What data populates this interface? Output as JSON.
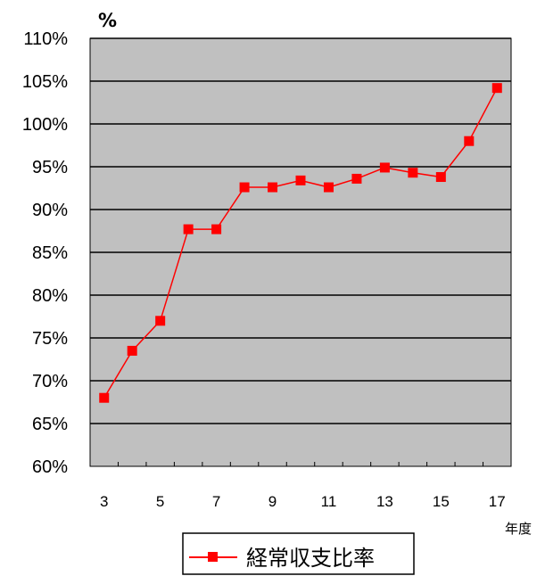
{
  "chart_data": {
    "type": "line",
    "ylabel": "%",
    "xlabel": "年度",
    "ylim": [
      60,
      110
    ],
    "yticks": [
      "60%",
      "65%",
      "70%",
      "75%",
      "80%",
      "85%",
      "90%",
      "95%",
      "100%",
      "105%",
      "110%"
    ],
    "xtick_labels": [
      "3",
      "5",
      "7",
      "9",
      "11",
      "13",
      "15",
      "17"
    ],
    "x": [
      3,
      4,
      5,
      6,
      7,
      8,
      9,
      10,
      11,
      12,
      13,
      14,
      15,
      16,
      17
    ],
    "series": [
      {
        "name": "経常収支比率",
        "values": [
          68.0,
          73.5,
          77.0,
          87.7,
          87.7,
          92.6,
          92.6,
          93.4,
          92.6,
          93.6,
          94.9,
          94.3,
          93.8,
          98.0,
          104.2
        ]
      }
    ],
    "grid": true,
    "legend": "bottom",
    "colors": {
      "plot_bg": "#c0c0c0",
      "line": "#ff0000",
      "grid": "#000000"
    }
  }
}
